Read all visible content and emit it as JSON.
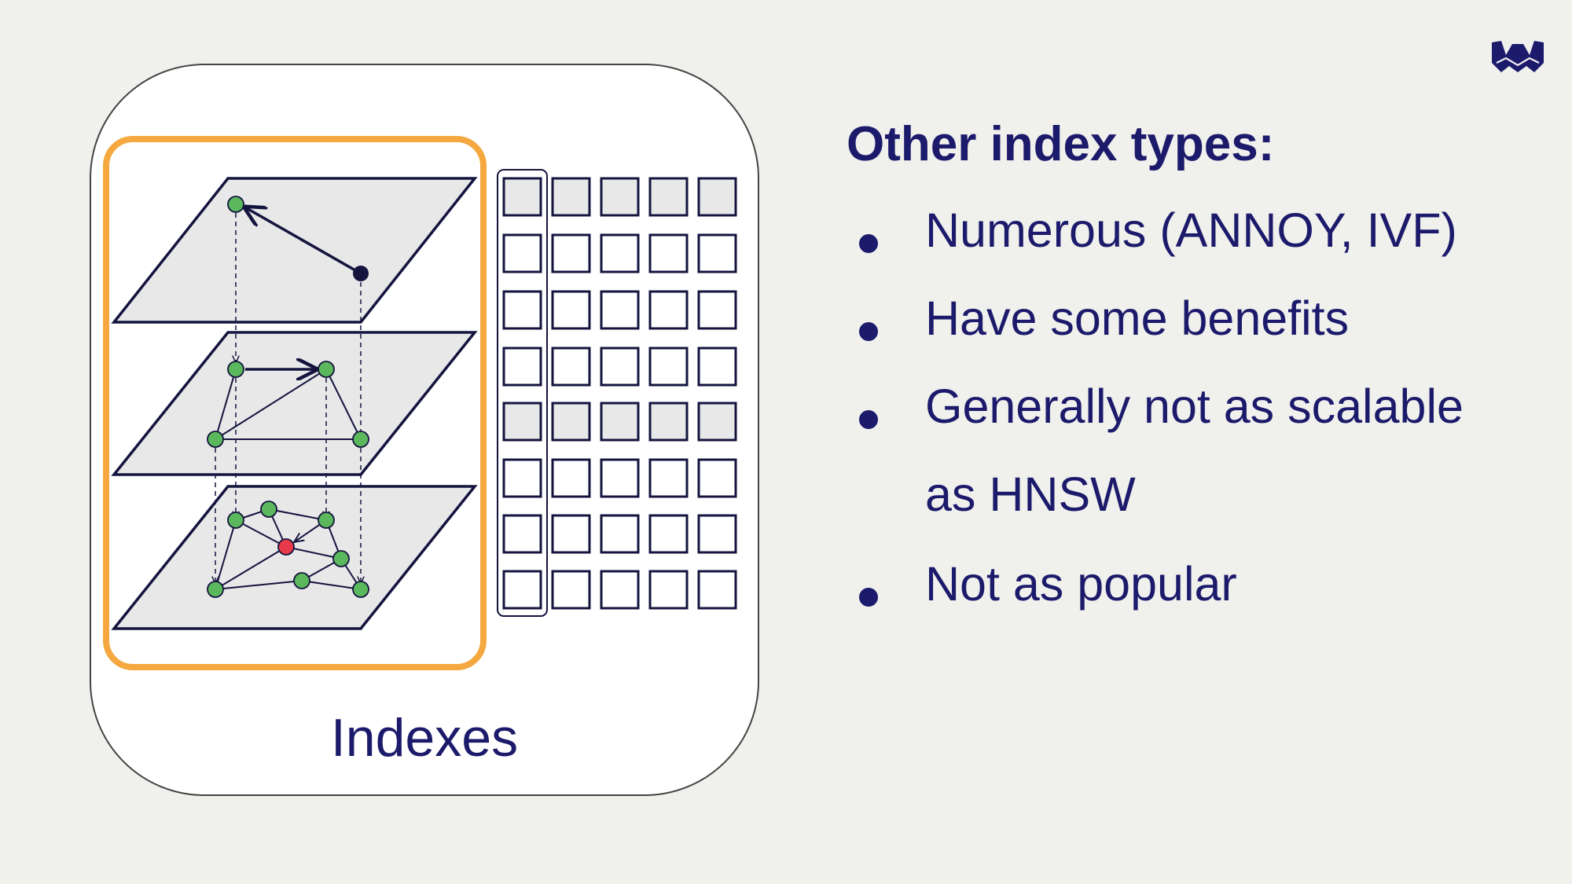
{
  "diagram": {
    "panel_label": "Indexes"
  },
  "heading": "Other index types:",
  "bullets": [
    {
      "text": "Numerous (ANNOY, IVF)"
    },
    {
      "text": "Have some benefits"
    },
    {
      "text": "Generally not as scalable"
    },
    {
      "text": "as HNSW",
      "continuation": true
    },
    {
      "text": "Not as popular"
    }
  ],
  "logo": {
    "icon": "w-logo-icon"
  },
  "colors": {
    "background": "#f0f0ed",
    "text": "#1c1a6b",
    "highlight_border": "#f5a83f",
    "layer_fill": "#e8e8e8",
    "node": "#5cb85c",
    "query_node": "#e83a4a"
  }
}
